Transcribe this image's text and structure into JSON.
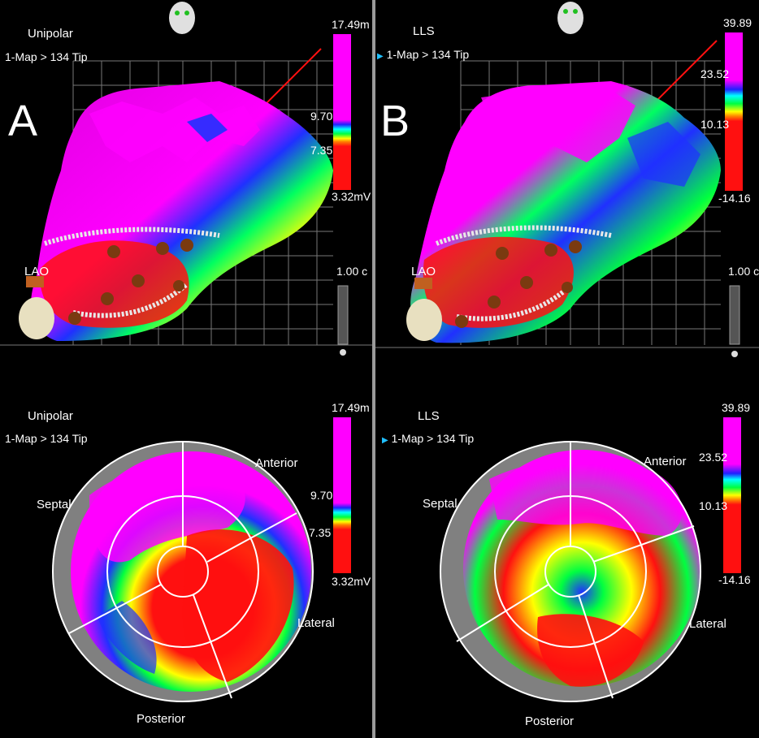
{
  "panels": [
    {
      "letter": "A",
      "map_type": "Unipolar",
      "map_name": "1-Map > 134 Tip",
      "view_label": "LAO",
      "scale": {
        "max": "17.49m",
        "upper": "9.70",
        "lower": "7.35",
        "min": "3.32mV"
      },
      "lower_scale": {
        "max": "17.49m",
        "upper": "9.70",
        "lower": "7.35",
        "min": "3.32mV"
      },
      "distance": "1.00 c",
      "bullseye_labels": {
        "anterior": "Anterior",
        "septal": "Septal",
        "lateral": "Lateral",
        "posterior": "Posterior"
      }
    },
    {
      "letter": "B",
      "map_type": "LLS",
      "map_name": "1-Map > 134 Tip",
      "view_label": "LAO",
      "scale": {
        "max": "39.89",
        "upper": "23.52",
        "lower": "10.13",
        "min": "-14.16"
      },
      "lower_scale": {
        "max": "39.89",
        "upper": "23.52",
        "lower": "10.13",
        "min": "-14.16"
      },
      "distance": "1.00 c",
      "bullseye_labels": {
        "anterior": "Anterior",
        "septal": "Septal",
        "lateral": "Lateral",
        "posterior": "Posterior"
      }
    }
  ],
  "colors": {
    "magenta": "#ff00ff",
    "blue": "#2020ff",
    "green": "#00ff40",
    "yellow": "#ffff00",
    "red": "#ff1010",
    "grey": "#808080"
  }
}
